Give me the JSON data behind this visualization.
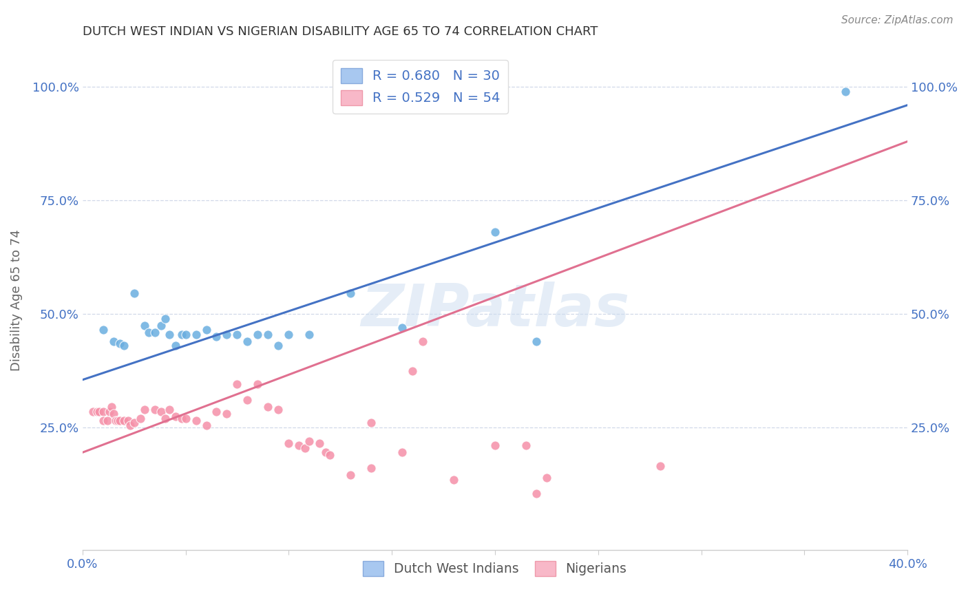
{
  "title": "DUTCH WEST INDIAN VS NIGERIAN DISABILITY AGE 65 TO 74 CORRELATION CHART",
  "source": "Source: ZipAtlas.com",
  "ylabel": "Disability Age 65 to 74",
  "xlim": [
    0.0,
    0.4
  ],
  "ylim": [
    -0.02,
    1.08
  ],
  "xticks": [
    0.0,
    0.05,
    0.1,
    0.15,
    0.2,
    0.25,
    0.3,
    0.35,
    0.4
  ],
  "yticks": [
    0.25,
    0.5,
    0.75,
    1.0
  ],
  "ytick_labels": [
    "25.0%",
    "50.0%",
    "75.0%",
    "100.0%"
  ],
  "xtick_labels": [
    "0.0%",
    "",
    "",
    "",
    "",
    "",
    "",
    "",
    "40.0%"
  ],
  "watermark": "ZIPatlas",
  "blue_color": "#6aaee0",
  "pink_color": "#f590a8",
  "blue_scatter": [
    [
      0.01,
      0.465
    ],
    [
      0.015,
      0.44
    ],
    [
      0.018,
      0.435
    ],
    [
      0.02,
      0.43
    ],
    [
      0.025,
      0.545
    ],
    [
      0.03,
      0.475
    ],
    [
      0.032,
      0.46
    ],
    [
      0.035,
      0.46
    ],
    [
      0.038,
      0.475
    ],
    [
      0.04,
      0.49
    ],
    [
      0.042,
      0.455
    ],
    [
      0.045,
      0.43
    ],
    [
      0.048,
      0.455
    ],
    [
      0.05,
      0.455
    ],
    [
      0.055,
      0.455
    ],
    [
      0.06,
      0.465
    ],
    [
      0.065,
      0.45
    ],
    [
      0.07,
      0.455
    ],
    [
      0.075,
      0.455
    ],
    [
      0.08,
      0.44
    ],
    [
      0.085,
      0.455
    ],
    [
      0.09,
      0.455
    ],
    [
      0.095,
      0.43
    ],
    [
      0.1,
      0.455
    ],
    [
      0.11,
      0.455
    ],
    [
      0.13,
      0.545
    ],
    [
      0.155,
      0.47
    ],
    [
      0.2,
      0.68
    ],
    [
      0.22,
      0.44
    ],
    [
      0.37,
      0.99
    ]
  ],
  "pink_scatter": [
    [
      0.005,
      0.285
    ],
    [
      0.007,
      0.285
    ],
    [
      0.008,
      0.285
    ],
    [
      0.01,
      0.285
    ],
    [
      0.01,
      0.265
    ],
    [
      0.012,
      0.265
    ],
    [
      0.013,
      0.285
    ],
    [
      0.014,
      0.295
    ],
    [
      0.015,
      0.28
    ],
    [
      0.016,
      0.265
    ],
    [
      0.017,
      0.265
    ],
    [
      0.018,
      0.265
    ],
    [
      0.02,
      0.265
    ],
    [
      0.022,
      0.265
    ],
    [
      0.023,
      0.255
    ],
    [
      0.025,
      0.26
    ],
    [
      0.028,
      0.27
    ],
    [
      0.03,
      0.29
    ],
    [
      0.035,
      0.29
    ],
    [
      0.038,
      0.285
    ],
    [
      0.04,
      0.27
    ],
    [
      0.042,
      0.29
    ],
    [
      0.045,
      0.275
    ],
    [
      0.048,
      0.27
    ],
    [
      0.05,
      0.27
    ],
    [
      0.055,
      0.265
    ],
    [
      0.06,
      0.255
    ],
    [
      0.065,
      0.285
    ],
    [
      0.07,
      0.28
    ],
    [
      0.075,
      0.345
    ],
    [
      0.08,
      0.31
    ],
    [
      0.085,
      0.345
    ],
    [
      0.09,
      0.295
    ],
    [
      0.095,
      0.29
    ],
    [
      0.1,
      0.215
    ],
    [
      0.105,
      0.21
    ],
    [
      0.108,
      0.205
    ],
    [
      0.11,
      0.22
    ],
    [
      0.115,
      0.215
    ],
    [
      0.118,
      0.195
    ],
    [
      0.12,
      0.19
    ],
    [
      0.13,
      0.145
    ],
    [
      0.14,
      0.26
    ],
    [
      0.14,
      0.16
    ],
    [
      0.155,
      0.195
    ],
    [
      0.16,
      0.375
    ],
    [
      0.165,
      0.44
    ],
    [
      0.18,
      0.135
    ],
    [
      0.2,
      0.21
    ],
    [
      0.215,
      0.21
    ],
    [
      0.22,
      0.105
    ],
    [
      0.13,
      1.0
    ],
    [
      0.225,
      0.14
    ],
    [
      0.28,
      0.165
    ]
  ],
  "blue_line_x": [
    0.0,
    0.4
  ],
  "blue_line_y": [
    0.355,
    0.96
  ],
  "pink_line_x": [
    0.0,
    0.4
  ],
  "pink_line_y": [
    0.195,
    0.88
  ],
  "background_color": "#ffffff",
  "grid_color": "#d0d8e8",
  "tick_color": "#4472c4",
  "title_color": "#333333",
  "axis_color": "#cccccc",
  "blue_line_color": "#4472c4",
  "pink_line_color": "#e07090"
}
